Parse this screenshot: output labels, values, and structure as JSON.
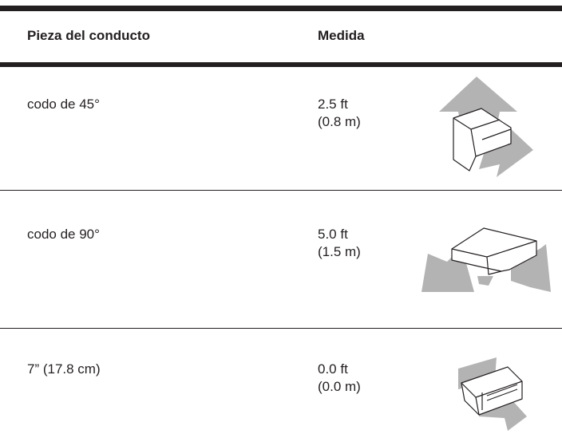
{
  "table": {
    "header": [
      "Pieza del conducto",
      "Medida"
    ],
    "rows": [
      {
        "piece": "codo de 45°",
        "length": "2.5 ft",
        "metric": "(0.8 m)"
      },
      {
        "piece": "codo de 90°",
        "length": "5.0 ft",
        "metric": "(1.5 m)"
      },
      {
        "piece": "7” (17.8 cm)",
        "length": "0.0 ft",
        "metric": "(0.0 m)"
      }
    ]
  }
}
